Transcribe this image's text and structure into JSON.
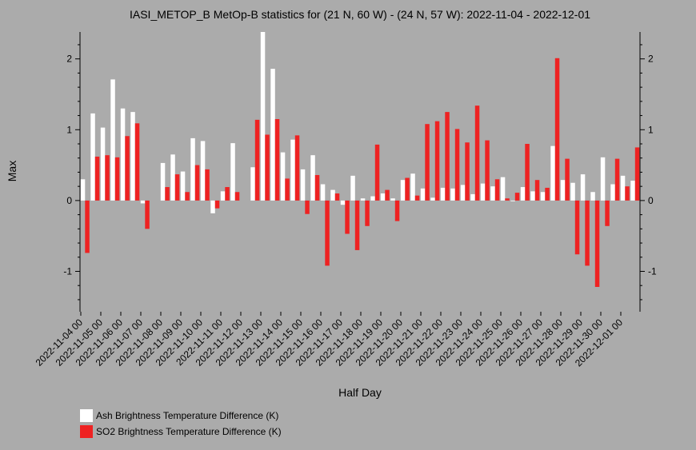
{
  "chart_data": {
    "type": "bar",
    "title": "IASI_METOP_B MetOp-B statistics for (21 N, 60 W) - (24 N, 57 W): 2022-11-04 - 2022-12-01",
    "xlabel": "Half Day",
    "ylabel": "Max",
    "ylim": [
      -1.57,
      2.38
    ],
    "y_ticks": [
      -1,
      0,
      1,
      2
    ],
    "y_tick_labels": [
      "-1",
      "0",
      "1",
      "2"
    ],
    "x_tick_labels": [
      "2022-11-04 00",
      "2022-11-05 00",
      "2022-11-06 00",
      "2022-11-07 00",
      "2022-11-08 00",
      "2022-11-09 00",
      "2022-11-10 00",
      "2022-11-11 00",
      "2022-11-12 00",
      "2022-11-13 00",
      "2022-11-14 00",
      "2022-11-15 00",
      "2022-11-16 00",
      "2022-11-17 00",
      "2022-11-18 00",
      "2022-11-19 00",
      "2022-11-20 00",
      "2022-11-21 00",
      "2022-11-22 00",
      "2022-11-23 00",
      "2022-11-24 00",
      "2022-11-25 00",
      "2022-11-26 00",
      "2022-11-27 00",
      "2022-11-28 00",
      "2022-11-29 00",
      "2022-11-30 00",
      "2022-12-01 00"
    ],
    "categories": [
      "2022-11-04 00",
      "2022-11-04 12",
      "2022-11-05 00",
      "2022-11-05 12",
      "2022-11-06 00",
      "2022-11-06 12",
      "2022-11-07 00",
      "2022-11-07 12",
      "2022-11-08 00",
      "2022-11-08 12",
      "2022-11-09 00",
      "2022-11-09 12",
      "2022-11-10 00",
      "2022-11-10 12",
      "2022-11-11 00",
      "2022-11-11 12",
      "2022-11-12 00",
      "2022-11-12 12",
      "2022-11-13 00",
      "2022-11-13 12",
      "2022-11-14 00",
      "2022-11-14 12",
      "2022-11-15 00",
      "2022-11-15 12",
      "2022-11-16 00",
      "2022-11-16 12",
      "2022-11-17 00",
      "2022-11-17 12",
      "2022-11-18 00",
      "2022-11-18 12",
      "2022-11-19 00",
      "2022-11-19 12",
      "2022-11-20 00",
      "2022-11-20 12",
      "2022-11-21 00",
      "2022-11-21 12",
      "2022-11-22 00",
      "2022-11-22 12",
      "2022-11-23 00",
      "2022-11-23 12",
      "2022-11-24 00",
      "2022-11-24 12",
      "2022-11-25 00",
      "2022-11-25 12",
      "2022-11-26 00",
      "2022-11-26 12",
      "2022-11-27 00",
      "2022-11-27 12",
      "2022-11-28 00",
      "2022-11-28 12",
      "2022-11-29 00",
      "2022-11-29 12",
      "2022-11-30 00",
      "2022-11-30 12",
      "2022-12-01 00",
      "2022-12-01 12"
    ],
    "series": [
      {
        "name": "Ash Brightness Temperature Difference (K)",
        "color": "#ffffff",
        "values": [
          0.3,
          1.23,
          1.03,
          1.71,
          1.3,
          1.25,
          -0.04,
          null,
          0.53,
          0.65,
          0.41,
          0.88,
          0.84,
          -0.18,
          0.13,
          0.81,
          null,
          0.47,
          2.38,
          1.86,
          0.68,
          0.86,
          0.44,
          0.64,
          0.23,
          0.15,
          -0.06,
          0.35,
          0.03,
          0.06,
          0.1,
          0.03,
          0.29,
          0.38,
          0.17,
          0.04,
          0.18,
          0.17,
          0.22,
          0.09,
          0.24,
          0.2,
          0.33,
          -0.01,
          0.19,
          0.13,
          0.12,
          0.77,
          0.29,
          0.25,
          0.37,
          0.12,
          0.61,
          0.23,
          0.35,
          0.28
        ]
      },
      {
        "name": "SO2 Brightness Temperature Difference (K)",
        "color": "#ee2222",
        "values": [
          -0.74,
          0.62,
          0.64,
          0.61,
          0.91,
          1.09,
          -0.4,
          null,
          0.19,
          0.37,
          0.12,
          0.5,
          0.44,
          -0.11,
          0.19,
          0.12,
          null,
          1.14,
          0.93,
          1.15,
          0.31,
          0.92,
          -0.19,
          0.36,
          -0.92,
          0.1,
          -0.47,
          -0.7,
          -0.36,
          0.79,
          0.15,
          -0.29,
          0.32,
          0.07,
          1.08,
          1.12,
          1.25,
          1.01,
          0.82,
          1.34,
          0.85,
          0.3,
          0.03,
          0.11,
          0.8,
          0.29,
          0.18,
          2.01,
          0.59,
          -0.76,
          -0.92,
          -1.22,
          -0.36,
          0.59,
          0.2,
          0.75
        ]
      }
    ],
    "legend_position": "bottom-left",
    "grid": false
  }
}
